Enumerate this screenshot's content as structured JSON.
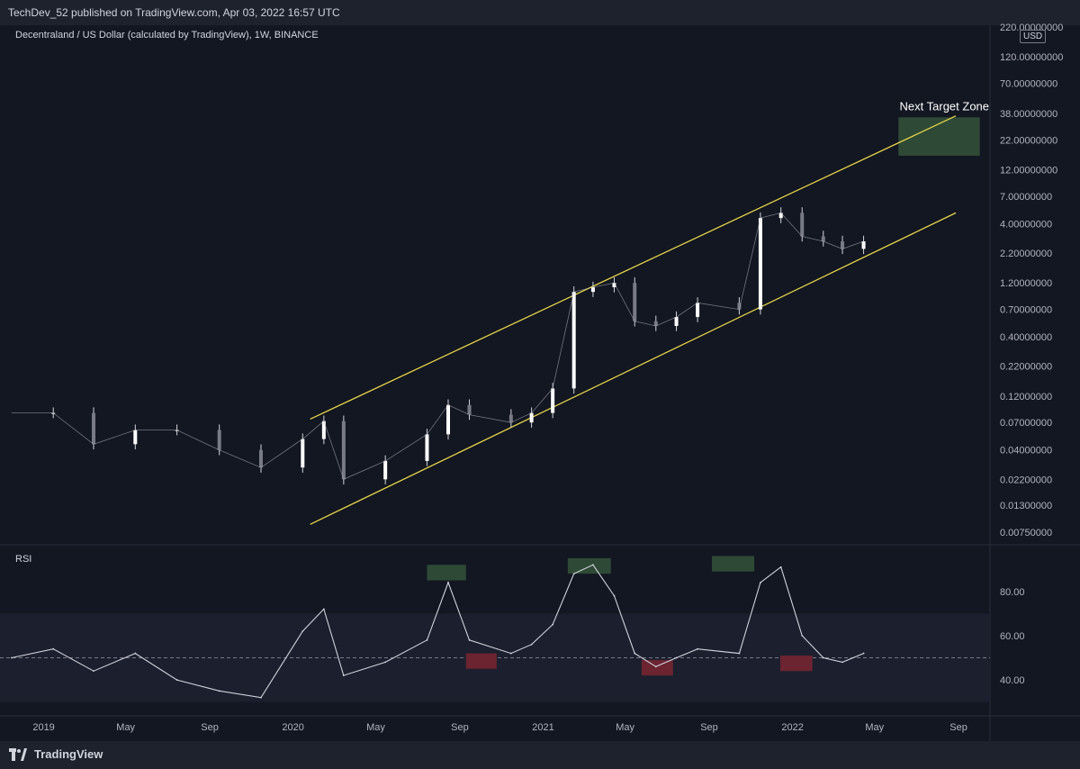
{
  "header": {
    "published_text": "TechDev_52 published on TradingView.com, Apr 03, 2022 16:57 UTC"
  },
  "footer": {
    "brand": "TradingView"
  },
  "chart_data": [
    {
      "type": "candlestick",
      "title": "Decentraland / US Dollar (calculated by TradingView), 1W, BINANCE",
      "currency": "USD",
      "y_scale": "log",
      "y_ticks": [
        "220.00000000",
        "120.00000000",
        "70.00000000",
        "38.00000000",
        "22.00000000",
        "12.00000000",
        "7.00000000",
        "4.00000000",
        "2.20000000",
        "1.20000000",
        "0.70000000",
        "0.40000000",
        "0.22000000",
        "0.12000000",
        "0.07000000",
        "0.04000000",
        "0.02200000",
        "0.01300000",
        "0.00750000"
      ],
      "x_ticks": [
        "2019",
        "May",
        "Sep",
        "2020",
        "May",
        "Sep",
        "2021",
        "May",
        "Sep",
        "2022",
        "May",
        "Sep"
      ],
      "x_range": [
        "2018-10-29",
        "2022-10-17"
      ],
      "close_series": {
        "x": [
          "2018-11",
          "2019-01",
          "2019-03",
          "2019-05",
          "2019-07",
          "2019-09",
          "2019-11",
          "2020-01",
          "2020-02",
          "2020-03",
          "2020-05",
          "2020-07",
          "2020-08",
          "2020-09",
          "2020-11",
          "2020-12",
          "2021-01",
          "2021-02",
          "2021-03",
          "2021-04",
          "2021-05",
          "2021-06",
          "2021-07",
          "2021-08",
          "2021-10",
          "2021-11",
          "2021-12",
          "2022-01",
          "2022-02",
          "2022-03",
          "2022-04"
        ],
        "y": [
          0.085,
          0.085,
          0.045,
          0.06,
          0.06,
          0.04,
          0.028,
          0.05,
          0.072,
          0.022,
          0.032,
          0.055,
          0.1,
          0.082,
          0.07,
          0.085,
          0.14,
          1.0,
          1.1,
          1.2,
          0.55,
          0.5,
          0.6,
          0.8,
          0.7,
          4.5,
          5.0,
          3.1,
          2.8,
          2.4,
          2.8
        ]
      },
      "channel": {
        "upper": [
          {
            "x": "2020-01-26",
            "y": 0.075
          },
          {
            "x": "2022-08-28",
            "y": 36.0
          }
        ],
        "lower": [
          {
            "x": "2020-01-26",
            "y": 0.0088
          },
          {
            "x": "2022-08-28",
            "y": 5.0
          }
        ],
        "color": "#e7d54a"
      },
      "target_zone": {
        "label": "Next Target Zone",
        "x": [
          "2022-06-05",
          "2022-10-02"
        ],
        "y": [
          16.0,
          35.0
        ],
        "color": "#2e4a36"
      }
    },
    {
      "type": "line",
      "title": "RSI",
      "y_ticks": [
        "80.00",
        "60.00",
        "40.00"
      ],
      "ylim": [
        27,
        97
      ],
      "band": [
        30,
        70
      ],
      "midline": 50,
      "x": [
        "2018-11",
        "2019-01",
        "2019-03",
        "2019-05",
        "2019-07",
        "2019-09",
        "2019-11",
        "2020-01",
        "2020-02",
        "2020-03",
        "2020-05",
        "2020-07",
        "2020-08",
        "2020-09",
        "2020-11",
        "2020-12",
        "2021-01",
        "2021-02",
        "2021-03",
        "2021-04",
        "2021-05",
        "2021-06",
        "2021-07",
        "2021-08",
        "2021-10",
        "2021-11",
        "2021-12",
        "2022-01",
        "2022-02",
        "2022-03",
        "2022-04"
      ],
      "values": [
        50,
        54,
        44,
        52,
        40,
        35,
        32,
        62,
        72,
        42,
        48,
        58,
        84,
        58,
        52,
        56,
        65,
        88,
        92,
        78,
        52,
        46,
        50,
        54,
        52,
        84,
        91,
        60,
        50,
        48,
        52
      ],
      "overbought_boxes": [
        {
          "x": [
            "2020-07-15",
            "2020-09-10"
          ],
          "y": [
            85,
            92
          ]
        },
        {
          "x": [
            "2021-02-06",
            "2021-04-10"
          ],
          "y": [
            88,
            95
          ]
        },
        {
          "x": [
            "2021-09-05",
            "2021-11-06"
          ],
          "y": [
            89,
            96
          ]
        }
      ],
      "oversold_boxes": [
        {
          "x": [
            "2020-09-10",
            "2020-10-25"
          ],
          "y": [
            45,
            52
          ]
        },
        {
          "x": [
            "2021-05-25",
            "2021-07-10"
          ],
          "y": [
            42,
            49
          ]
        },
        {
          "x": [
            "2021-12-14",
            "2022-01-30"
          ],
          "y": [
            44,
            51
          ]
        }
      ]
    }
  ]
}
